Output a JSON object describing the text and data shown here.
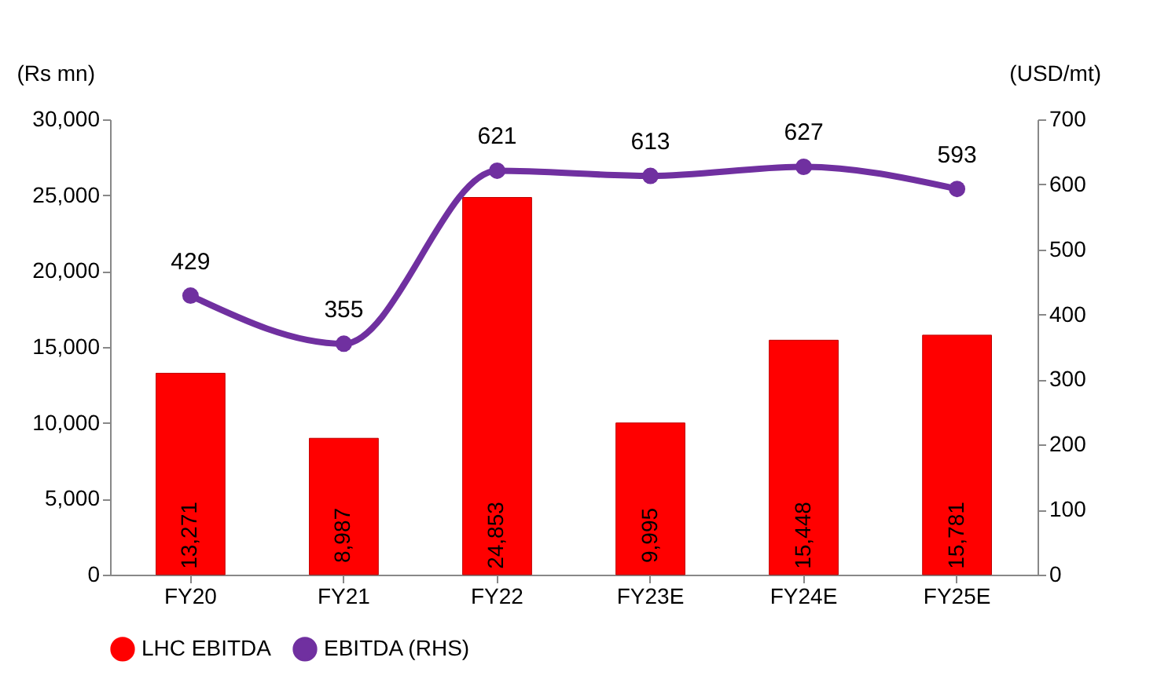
{
  "chart_data": {
    "type": "bar",
    "categories": [
      "FY20",
      "FY21",
      "FY22",
      "FY23E",
      "FY24E",
      "FY25E"
    ],
    "series": [
      {
        "name": "LHC EBITDA",
        "color": "#ff0000",
        "values": [
          13271,
          8987,
          24853,
          9995,
          15448,
          15781
        ],
        "value_labels": [
          "13,271",
          "8,987",
          "24,853",
          "9,995",
          "15,448",
          "15,781"
        ]
      },
      {
        "name": "EBITDA (RHS)",
        "type": "line",
        "axis": "y2",
        "color": "#7030a0",
        "marker": "circle",
        "values": [
          429,
          355,
          621,
          613,
          627,
          593
        ]
      }
    ],
    "ylabel": "(Rs mn)",
    "y2label": "(USD/mt)",
    "ylim": [
      0,
      30000
    ],
    "yticks": [
      {
        "value": 0,
        "label": "0"
      },
      {
        "value": 5000,
        "label": "5,000"
      },
      {
        "value": 10000,
        "label": "10,000"
      },
      {
        "value": 15000,
        "label": "15,000"
      },
      {
        "value": 20000,
        "label": "20,000"
      },
      {
        "value": 25000,
        "label": "25,000"
      },
      {
        "value": 30000,
        "label": "30,000"
      }
    ],
    "y2lim": [
      0,
      700
    ],
    "y2ticks": [
      0,
      100,
      200,
      300,
      400,
      500,
      600,
      700
    ],
    "data_labels": true,
    "grid": false,
    "legend": "bottom"
  }
}
